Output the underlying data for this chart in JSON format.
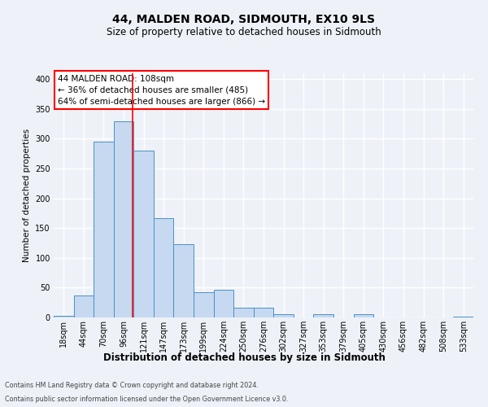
{
  "title": "44, MALDEN ROAD, SIDMOUTH, EX10 9LS",
  "subtitle": "Size of property relative to detached houses in Sidmouth",
  "xlabel": "Distribution of detached houses by size in Sidmouth",
  "ylabel": "Number of detached properties",
  "bar_labels": [
    "18sqm",
    "44sqm",
    "70sqm",
    "96sqm",
    "121sqm",
    "147sqm",
    "173sqm",
    "199sqm",
    "224sqm",
    "250sqm",
    "276sqm",
    "302sqm",
    "327sqm",
    "353sqm",
    "379sqm",
    "405sqm",
    "430sqm",
    "456sqm",
    "482sqm",
    "508sqm",
    "533sqm"
  ],
  "bar_values": [
    3,
    37,
    295,
    330,
    280,
    167,
    123,
    42,
    46,
    16,
    17,
    5,
    0,
    6,
    0,
    6,
    0,
    0,
    0,
    0,
    2
  ],
  "bar_color": "#c6d9f0",
  "bar_edge_color": "#4a90c4",
  "annotation_label": "44 MALDEN ROAD: 108sqm",
  "annotation_line1": "← 36% of detached houses are smaller (485)",
  "annotation_line2": "64% of semi-detached houses are larger (866) →",
  "annotation_box_facecolor": "white",
  "annotation_box_edgecolor": "red",
  "vline_color": "red",
  "ylim": [
    0,
    410
  ],
  "yticks": [
    0,
    50,
    100,
    150,
    200,
    250,
    300,
    350,
    400
  ],
  "background_color": "#eef2f8",
  "grid_color": "white",
  "footnote1": "Contains HM Land Registry data © Crown copyright and database right 2024.",
  "footnote2": "Contains public sector information licensed under the Open Government Licence v3.0.",
  "title_fontsize": 10,
  "subtitle_fontsize": 8.5,
  "xlabel_fontsize": 8.5,
  "ylabel_fontsize": 7.5,
  "tick_fontsize": 7,
  "annotation_fontsize": 7.5,
  "footnote_fontsize": 5.8
}
